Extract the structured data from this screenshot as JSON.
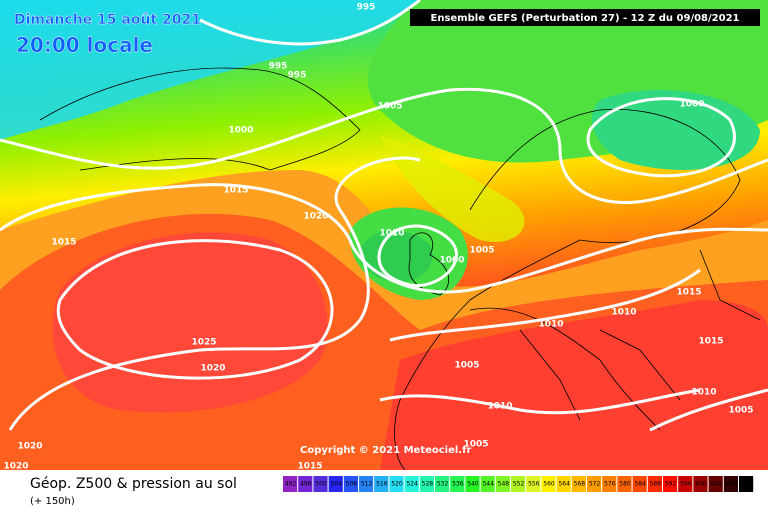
{
  "header": {
    "date": "Dimanche 15 août 2021",
    "time": "20:00 locale",
    "run": "Ensemble GEFS  (Perturbation 27)  -  12 Z du 09/08/2021"
  },
  "copyright": "Copyright © 2021 Meteociel.fr",
  "footer": {
    "title": "Géop. Z500 & pression au sol",
    "lead": "(+ 150h)"
  },
  "isobar_labels": [
    "995",
    "995",
    "995",
    "1005",
    "1000",
    "1000",
    "1015",
    "1020",
    "1015",
    "1010",
    "1005",
    "1000",
    "1015",
    "1010",
    "1010",
    "1025",
    "1015",
    "1020",
    "1005",
    "1010",
    "1010",
    "1005",
    "1005",
    "1020",
    "1020",
    "1015"
  ],
  "scale": {
    "labels": [
      "492",
      "496",
      "500",
      "504",
      "508",
      "512",
      "516",
      "520",
      "524",
      "528",
      "532",
      "536",
      "540",
      "544",
      "548",
      "552",
      "556",
      "560",
      "564",
      "568",
      "572",
      "576",
      "580",
      "584",
      "588",
      "592",
      "596",
      "600",
      "604",
      "608",
      "612"
    ]
  }
}
